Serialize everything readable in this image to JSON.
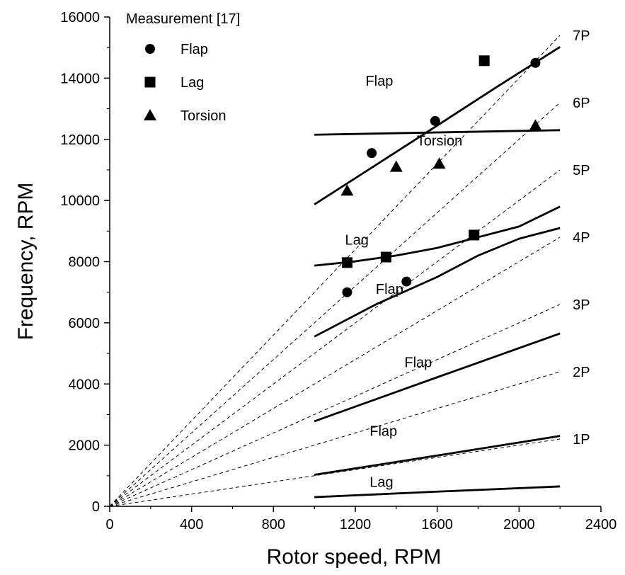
{
  "chart_data": {
    "type": "line",
    "xlabel": "Rotor speed, RPM",
    "ylabel": "Frequency, RPM",
    "xlim": [
      0,
      2400
    ],
    "ylim": [
      0,
      16000
    ],
    "xticks": [
      0,
      400,
      800,
      1200,
      1600,
      2000,
      2400
    ],
    "yticks": [
      0,
      2000,
      4000,
      6000,
      8000,
      10000,
      12000,
      14000,
      16000
    ],
    "grid": false,
    "legend": {
      "title": "Measurement [17]",
      "placement": "top-left",
      "entries": [
        {
          "label": "Flap",
          "marker": "circle"
        },
        {
          "label": "Lag",
          "marker": "square"
        },
        {
          "label": "Torsion",
          "marker": "triangle"
        }
      ]
    },
    "per_rev_lines": [
      {
        "label": "1P",
        "multiple": 1
      },
      {
        "label": "2P",
        "multiple": 2
      },
      {
        "label": "3P",
        "multiple": 3
      },
      {
        "label": "4P",
        "multiple": 4
      },
      {
        "label": "5P",
        "multiple": 5
      },
      {
        "label": "6P",
        "multiple": 6
      },
      {
        "label": "7P",
        "multiple": 7
      }
    ],
    "predicted_curves": [
      {
        "label": "Lag",
        "x": [
          1000,
          1600,
          2200
        ],
        "y": [
          300,
          480,
          650
        ],
        "label_at": [
          1270,
          640
        ]
      },
      {
        "label": "Flap",
        "x": [
          1000,
          1600,
          2200
        ],
        "y": [
          1030,
          1660,
          2300
        ],
        "label_at": [
          1270,
          2300
        ]
      },
      {
        "label": "Flap",
        "x": [
          1000,
          1600,
          2200
        ],
        "y": [
          2780,
          4220,
          5650
        ],
        "label_at": [
          1440,
          4550
        ]
      },
      {
        "label": "Flap",
        "x": [
          1000,
          1300,
          1600,
          1800,
          2000,
          2200
        ],
        "y": [
          5550,
          6600,
          7500,
          8200,
          8750,
          9100
        ],
        "label_at": [
          1300,
          6950
        ]
      },
      {
        "label": "Lag",
        "x": [
          1000,
          1200,
          1400,
          1600,
          1800,
          2000,
          2200
        ],
        "y": [
          7870,
          8010,
          8200,
          8450,
          8800,
          9150,
          9800
        ],
        "label_at": [
          1150,
          8550
        ]
      },
      {
        "label": "Torsion",
        "x": [
          1000,
          2200
        ],
        "y": [
          12150,
          12300
        ],
        "label_at": [
          1500,
          11800
        ]
      },
      {
        "label": "Flap",
        "x": [
          1000,
          1300,
          1600,
          1900,
          2200
        ],
        "y": [
          9870,
          11160,
          12450,
          13750,
          15020
        ],
        "label_at": [
          1250,
          13750
        ]
      }
    ],
    "measurements": [
      {
        "name": "Flap",
        "marker": "circle",
        "x": [
          1160,
          1280,
          1450,
          1590,
          2080
        ],
        "y": [
          7000,
          11550,
          7350,
          12600,
          14500
        ]
      },
      {
        "name": "Lag",
        "marker": "square",
        "x": [
          1160,
          1350,
          1780,
          1830
        ],
        "y": [
          7970,
          8150,
          8870,
          14570
        ]
      },
      {
        "name": "Torsion",
        "marker": "triangle",
        "x": [
          1160,
          1400,
          1610,
          2080
        ],
        "y": [
          10320,
          11100,
          11200,
          12450
        ]
      }
    ]
  }
}
